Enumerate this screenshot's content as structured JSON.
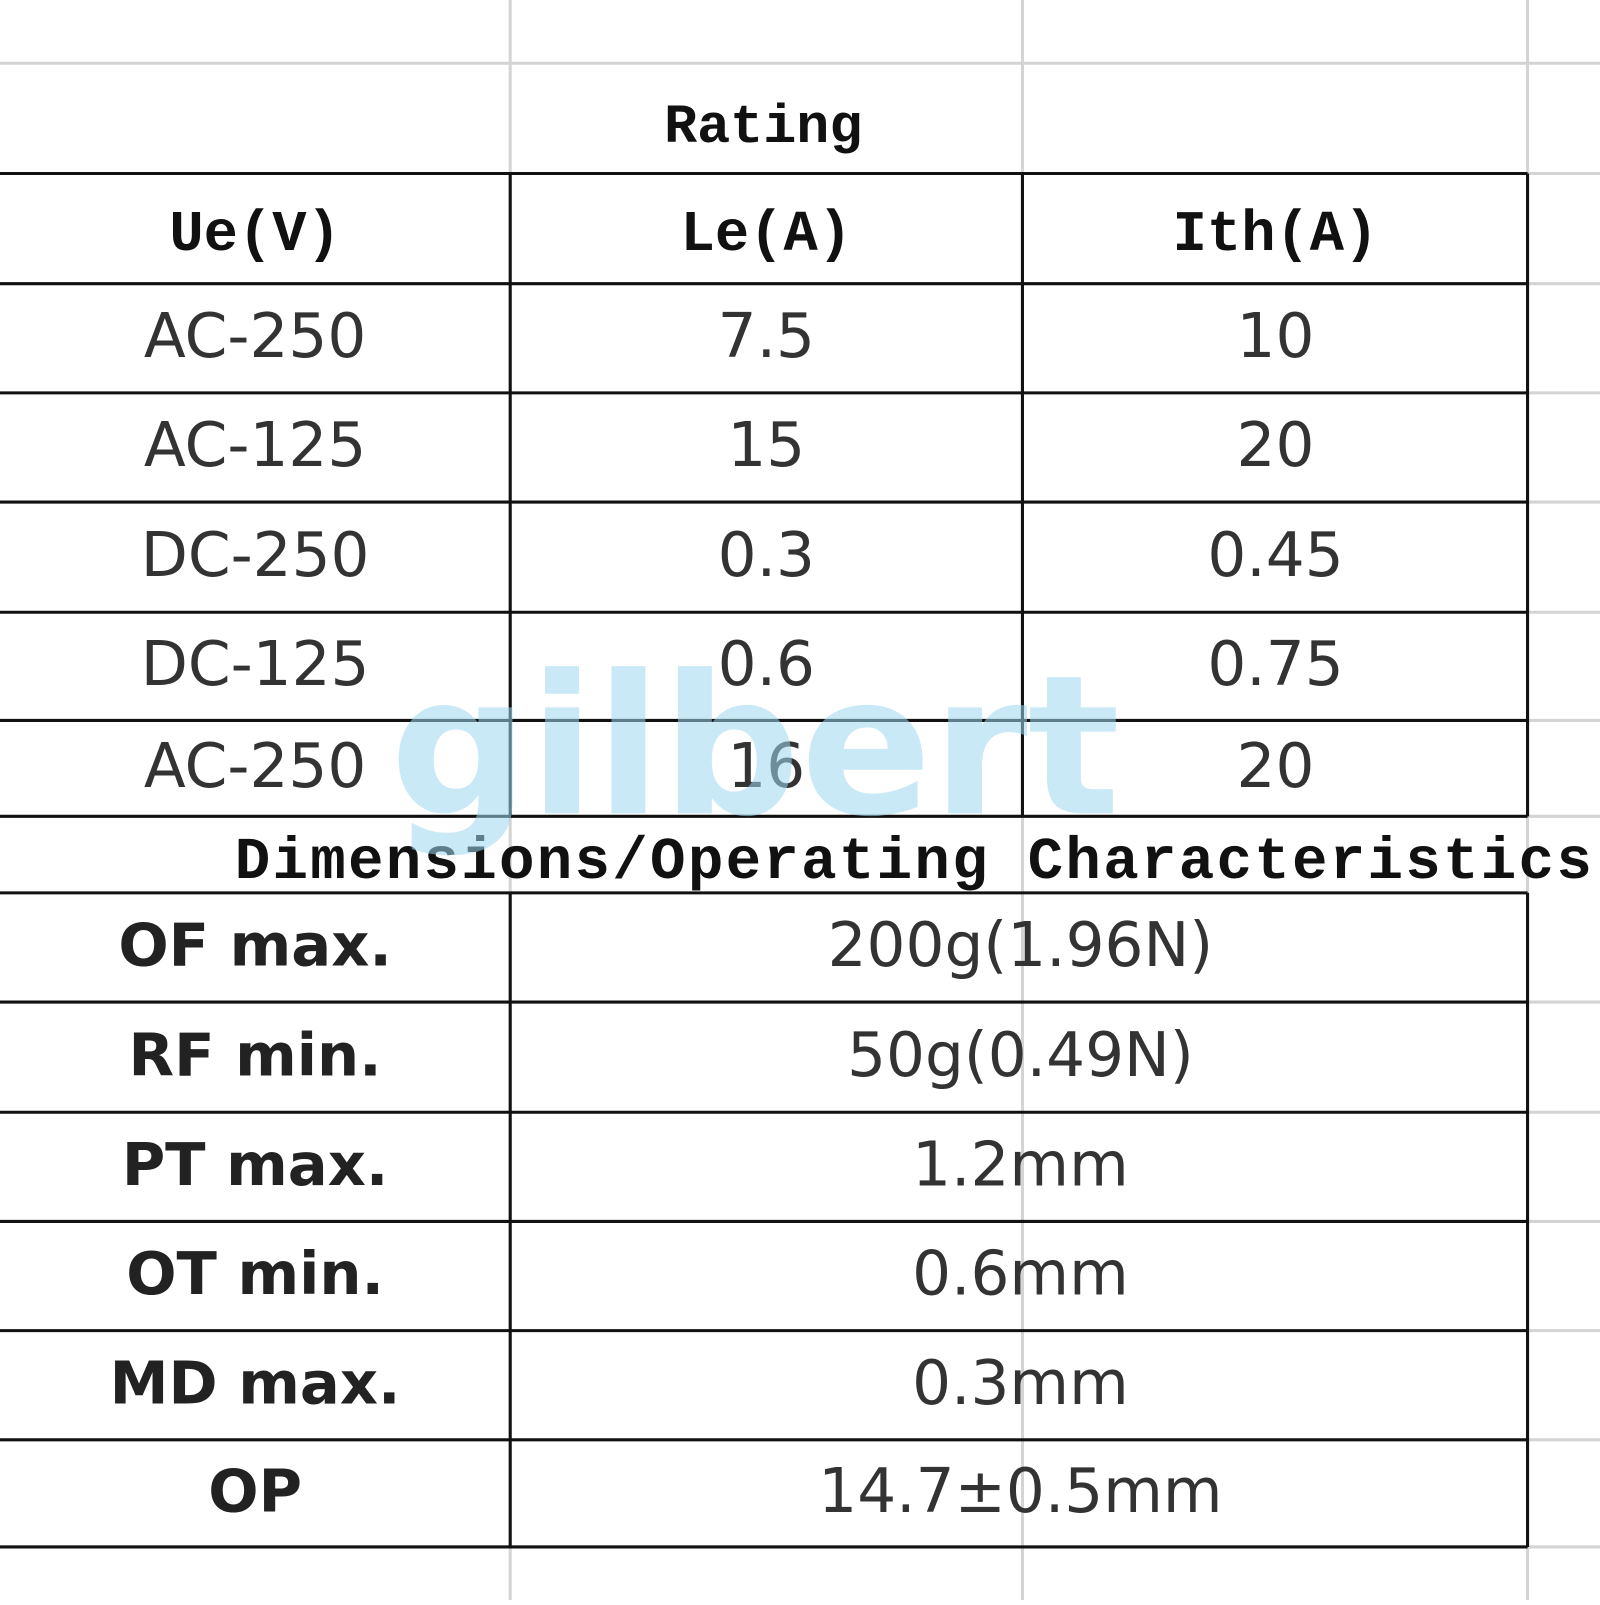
{
  "rating": {
    "title": "Rating",
    "headers": [
      "Ue(V)",
      "Le(A)",
      "Ith(A)"
    ],
    "rows": [
      [
        "AC-250",
        "7.5",
        "10"
      ],
      [
        "AC-125",
        "15",
        "20"
      ],
      [
        "DC-250",
        "0.3",
        "0.45"
      ],
      [
        "DC-125",
        "0.6",
        "0.75"
      ],
      [
        "AC-250",
        "16",
        "20"
      ]
    ]
  },
  "dimensions": {
    "title": "Dimensions/Operating Characteristics",
    "rows": [
      [
        "OF max.",
        "200g(1.96N)"
      ],
      [
        "RF min.",
        "50g(0.49N)"
      ],
      [
        "PT max.",
        "1.2mm"
      ],
      [
        "OT min.",
        "0.6mm"
      ],
      [
        "MD max.",
        "0.3mm"
      ],
      [
        "OP",
        "14.7±0.5mm"
      ]
    ]
  },
  "watermark": "gilbert"
}
